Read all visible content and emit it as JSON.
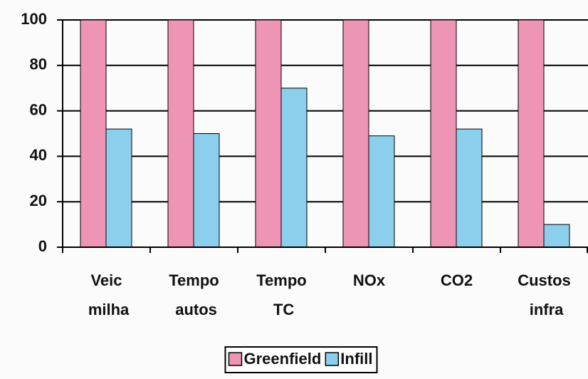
{
  "chart_data": {
    "type": "bar",
    "categories": [
      "Veic milha",
      "Tempo autos",
      "Tempo TC",
      "NOx",
      "CO2",
      "Custos infra"
    ],
    "series": [
      {
        "name": "Greenfield",
        "color": "#ee95b5",
        "values": [
          100,
          100,
          100,
          100,
          100,
          100
        ]
      },
      {
        "name": "Infill",
        "color": "#8ccfec",
        "values": [
          52,
          50,
          70,
          49,
          52,
          10
        ]
      }
    ],
    "ylim": [
      0,
      100
    ],
    "yticks": [
      0,
      20,
      40,
      60,
      80,
      100
    ],
    "grid": true
  }
}
